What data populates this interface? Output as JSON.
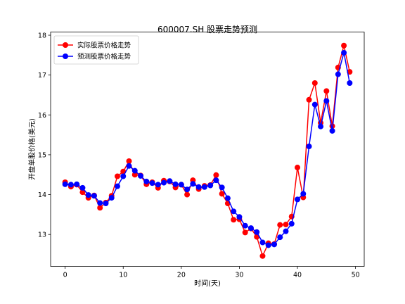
{
  "chart_data": {
    "type": "line",
    "title": "600007.SH 股票走势预测",
    "xlabel": "时间(天)",
    "ylabel": "开盘单股价格(美元)",
    "xlim": [
      -2.5,
      51.5
    ],
    "ylim": [
      12.2,
      18.08
    ],
    "x_ticks": [
      0,
      10,
      20,
      30,
      40,
      50
    ],
    "x_tick_labels": [
      "0",
      "10",
      "20",
      "30",
      "40",
      "50"
    ],
    "y_ticks": [
      13,
      14,
      15,
      16,
      17,
      18
    ],
    "y_tick_labels": [
      "13",
      "14",
      "15",
      "16",
      "17",
      "18"
    ],
    "grid": false,
    "legend_position": "top-left",
    "x": [
      0,
      1,
      2,
      3,
      4,
      5,
      6,
      7,
      8,
      9,
      10,
      11,
      12,
      13,
      14,
      15,
      16,
      17,
      18,
      19,
      20,
      21,
      22,
      23,
      24,
      25,
      26,
      27,
      28,
      29,
      30,
      31,
      32,
      33,
      34,
      35,
      36,
      37,
      38,
      39,
      40,
      41,
      42,
      43,
      44,
      45,
      46,
      47,
      48,
      49
    ],
    "series": [
      {
        "name": "实际股票价格走势",
        "color": "#ff0000",
        "values": [
          14.31,
          14.2,
          14.25,
          14.06,
          13.92,
          13.98,
          13.67,
          13.8,
          13.97,
          14.46,
          14.58,
          14.84,
          14.5,
          14.48,
          14.26,
          14.31,
          14.17,
          14.35,
          14.33,
          14.18,
          14.25,
          14.0,
          14.36,
          14.14,
          14.22,
          14.24,
          14.49,
          14.02,
          13.78,
          13.37,
          13.38,
          13.05,
          13.15,
          12.94,
          12.46,
          12.78,
          12.76,
          13.24,
          13.25,
          13.45,
          14.68,
          13.93,
          16.38,
          16.8,
          15.8,
          16.6,
          15.72,
          17.19,
          17.74,
          17.08
        ]
      },
      {
        "name": "预测股票价格走势",
        "color": "#0000ff",
        "values": [
          14.26,
          14.25,
          14.26,
          14.17,
          13.99,
          13.97,
          13.79,
          13.78,
          13.92,
          14.21,
          14.46,
          14.72,
          14.6,
          14.47,
          14.33,
          14.29,
          14.25,
          14.3,
          14.34,
          14.26,
          14.25,
          14.13,
          14.27,
          14.19,
          14.19,
          14.23,
          14.36,
          14.18,
          13.91,
          13.58,
          13.44,
          13.22,
          13.16,
          13.06,
          12.8,
          12.73,
          12.75,
          12.93,
          13.08,
          13.27,
          13.88,
          14.02,
          15.21,
          16.26,
          15.71,
          16.35,
          15.6,
          17.02,
          17.56,
          16.8
        ]
      }
    ]
  }
}
